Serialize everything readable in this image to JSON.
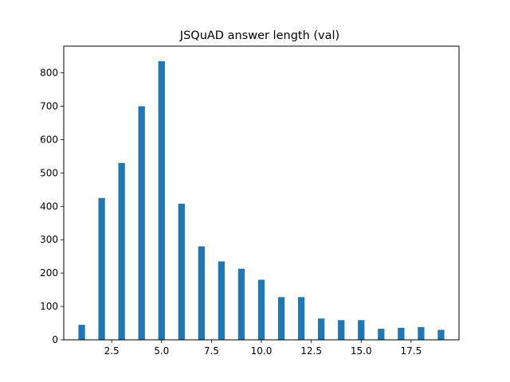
{
  "chart_data": {
    "type": "bar",
    "title": "JSQuAD answer length (val)",
    "xlabel": "",
    "ylabel": "",
    "xlim": [
      0.1,
      19.9
    ],
    "ylim": [
      0,
      880
    ],
    "grid": false,
    "bar_color": "#1f77b4",
    "bar_width": 0.33,
    "x_ticks": [
      2.5,
      5.0,
      7.5,
      10.0,
      12.5,
      15.0,
      17.5
    ],
    "x_tick_labels": [
      "2.5",
      "5.0",
      "7.5",
      "10.0",
      "12.5",
      "15.0",
      "17.5"
    ],
    "y_ticks": [
      0,
      100,
      200,
      300,
      400,
      500,
      600,
      700,
      800
    ],
    "y_tick_labels": [
      "0",
      "100",
      "200",
      "300",
      "400",
      "500",
      "600",
      "700",
      "800"
    ],
    "x": [
      1,
      2,
      3,
      4,
      5,
      6,
      7,
      8,
      9,
      10,
      11,
      12,
      13,
      14,
      15,
      16,
      17,
      18,
      19
    ],
    "values": [
      45,
      425,
      530,
      700,
      835,
      408,
      280,
      235,
      213,
      180,
      128,
      128,
      64,
      59,
      59,
      33,
      36,
      38,
      30
    ]
  }
}
